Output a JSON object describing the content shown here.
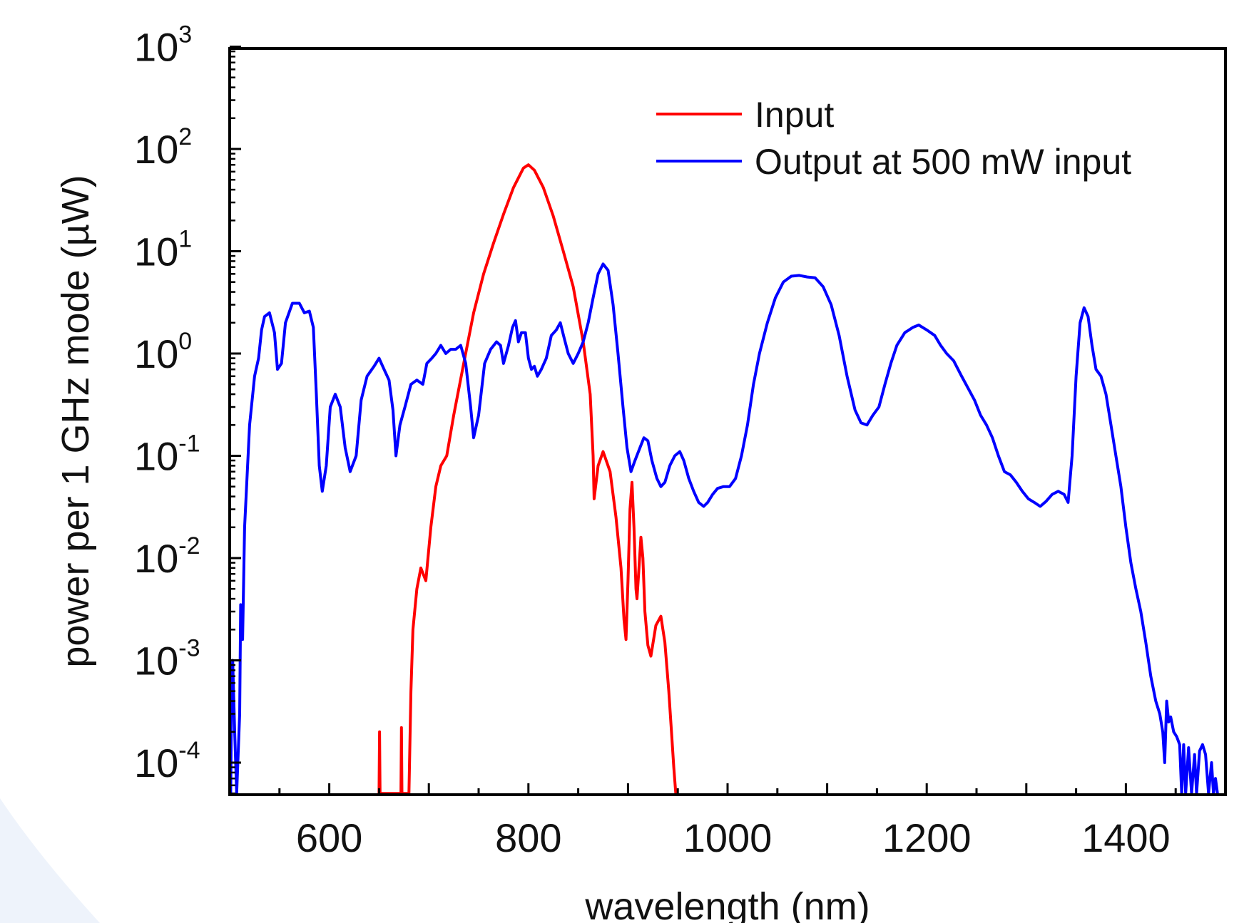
{
  "chart_data": {
    "type": "line",
    "title": "",
    "xlabel": "wavelength (nm)",
    "ylabel": "power per 1 GHz mode (µW)",
    "xlim": [
      500,
      1500
    ],
    "ylim": [
      5e-05,
      1000
    ],
    "y_scale": "log",
    "x_ticks": [
      "600",
      "800",
      "1000",
      "1200",
      "1400"
    ],
    "x_tick_values": [
      600,
      800,
      1000,
      1200,
      1400
    ],
    "y_ticks": [
      {
        "value": 0.0001,
        "base": "10",
        "exp": "-4"
      },
      {
        "value": 0.001,
        "base": "10",
        "exp": "-3"
      },
      {
        "value": 0.01,
        "base": "10",
        "exp": "-2"
      },
      {
        "value": 0.1,
        "base": "10",
        "exp": "-1"
      },
      {
        "value": 1,
        "base": "10",
        "exp": "0"
      },
      {
        "value": 10,
        "base": "10",
        "exp": "1"
      },
      {
        "value": 100,
        "base": "10",
        "exp": "2"
      },
      {
        "value": 1000,
        "base": "10",
        "exp": "3"
      }
    ],
    "legend_position": "top-right",
    "grid": false,
    "series": [
      {
        "name": "Input",
        "color": "#ff0000",
        "points": [
          [
            650,
            5e-05
          ],
          [
            650.5,
            0.0002
          ],
          [
            651,
            5e-05
          ],
          [
            672,
            5e-05
          ],
          [
            672.5,
            0.00022
          ],
          [
            673,
            5e-05
          ],
          [
            680,
            5e-05
          ],
          [
            682,
            0.0005
          ],
          [
            684,
            0.002
          ],
          [
            688,
            0.005
          ],
          [
            692,
            0.008
          ],
          [
            697,
            0.006
          ],
          [
            702,
            0.02
          ],
          [
            707,
            0.05
          ],
          [
            712,
            0.08
          ],
          [
            718,
            0.1
          ],
          [
            725,
            0.25
          ],
          [
            735,
            0.8
          ],
          [
            745,
            2.5
          ],
          [
            755,
            6
          ],
          [
            765,
            12
          ],
          [
            775,
            23
          ],
          [
            785,
            42
          ],
          [
            795,
            65
          ],
          [
            800,
            70
          ],
          [
            806,
            62
          ],
          [
            815,
            42
          ],
          [
            825,
            22
          ],
          [
            835,
            10
          ],
          [
            845,
            4.5
          ],
          [
            855,
            1.3
          ],
          [
            862,
            0.4
          ],
          [
            865,
            0.1
          ],
          [
            866,
            0.038
          ],
          [
            870,
            0.08
          ],
          [
            875,
            0.11
          ],
          [
            882,
            0.07
          ],
          [
            888,
            0.025
          ],
          [
            893,
            0.008
          ],
          [
            896,
            0.0025
          ],
          [
            898,
            0.0016
          ],
          [
            900,
            0.006
          ],
          [
            902,
            0.03
          ],
          [
            904,
            0.055
          ],
          [
            906,
            0.02
          ],
          [
            908,
            0.005
          ],
          [
            909,
            0.004
          ],
          [
            911,
            0.008
          ],
          [
            913,
            0.016
          ],
          [
            915,
            0.01
          ],
          [
            917,
            0.003
          ],
          [
            920,
            0.0014
          ],
          [
            923,
            0.0011
          ],
          [
            928,
            0.0022
          ],
          [
            933,
            0.0027
          ],
          [
            937,
            0.0015
          ],
          [
            941,
            0.0005
          ],
          [
            944,
            0.00018
          ],
          [
            946,
            9e-05
          ],
          [
            948,
            5e-05
          ],
          [
            950,
            5e-05
          ]
        ]
      },
      {
        "name": "Output at 500 mW input",
        "color": "#0000ff",
        "points": [
          [
            501,
            5e-05
          ],
          [
            502,
            0.0006
          ],
          [
            503,
            0.001
          ],
          [
            505,
            0.0002
          ],
          [
            507,
            5e-05
          ],
          [
            510,
            0.0003
          ],
          [
            511,
            0.0035
          ],
          [
            513,
            0.0016
          ],
          [
            515,
            0.02
          ],
          [
            520,
            0.2
          ],
          [
            525,
            0.6
          ],
          [
            529,
            0.9
          ],
          [
            532,
            1.7
          ],
          [
            535,
            2.3
          ],
          [
            540,
            2.5
          ],
          [
            545,
            1.6
          ],
          [
            548,
            0.7
          ],
          [
            552,
            0.8
          ],
          [
            556,
            2.0
          ],
          [
            563,
            3.1
          ],
          [
            570,
            3.1
          ],
          [
            575,
            2.5
          ],
          [
            580,
            2.6
          ],
          [
            584,
            1.8
          ],
          [
            587,
            0.4
          ],
          [
            590,
            0.08
          ],
          [
            593,
            0.045
          ],
          [
            597,
            0.08
          ],
          [
            601,
            0.3
          ],
          [
            606,
            0.4
          ],
          [
            611,
            0.3
          ],
          [
            616,
            0.12
          ],
          [
            621,
            0.07
          ],
          [
            627,
            0.1
          ],
          [
            632,
            0.35
          ],
          [
            638,
            0.6
          ],
          [
            645,
            0.75
          ],
          [
            650,
            0.9
          ],
          [
            655,
            0.7
          ],
          [
            660,
            0.55
          ],
          [
            664,
            0.28
          ],
          [
            667,
            0.1
          ],
          [
            671,
            0.2
          ],
          [
            676,
            0.3
          ],
          [
            682,
            0.5
          ],
          [
            688,
            0.55
          ],
          [
            694,
            0.5
          ],
          [
            698,
            0.8
          ],
          [
            703,
            0.9
          ],
          [
            707,
            1.0
          ],
          [
            712,
            1.2
          ],
          [
            717,
            1.0
          ],
          [
            722,
            1.1
          ],
          [
            727,
            1.1
          ],
          [
            732,
            1.2
          ],
          [
            737,
            0.8
          ],
          [
            742,
            0.3
          ],
          [
            745,
            0.15
          ],
          [
            750,
            0.25
          ],
          [
            756,
            0.8
          ],
          [
            762,
            1.1
          ],
          [
            768,
            1.3
          ],
          [
            772,
            1.2
          ],
          [
            775,
            0.8
          ],
          [
            780,
            1.2
          ],
          [
            784,
            1.8
          ],
          [
            787,
            2.1
          ],
          [
            790,
            1.3
          ],
          [
            793,
            1.6
          ],
          [
            797,
            1.6
          ],
          [
            800,
            0.9
          ],
          [
            803,
            0.7
          ],
          [
            806,
            0.75
          ],
          [
            809,
            0.6
          ],
          [
            813,
            0.7
          ],
          [
            818,
            0.9
          ],
          [
            823,
            1.5
          ],
          [
            828,
            1.7
          ],
          [
            832,
            2.0
          ],
          [
            836,
            1.4
          ],
          [
            840,
            1.0
          ],
          [
            845,
            0.8
          ],
          [
            850,
            1.0
          ],
          [
            855,
            1.3
          ],
          [
            860,
            2.0
          ],
          [
            865,
            3.5
          ],
          [
            870,
            6.0
          ],
          [
            875,
            7.5
          ],
          [
            880,
            6.5
          ],
          [
            885,
            3.0
          ],
          [
            890,
            1.0
          ],
          [
            895,
            0.3
          ],
          [
            899,
            0.12
          ],
          [
            903,
            0.07
          ],
          [
            907,
            0.09
          ],
          [
            912,
            0.12
          ],
          [
            916,
            0.15
          ],
          [
            920,
            0.14
          ],
          [
            924,
            0.09
          ],
          [
            929,
            0.06
          ],
          [
            933,
            0.05
          ],
          [
            937,
            0.055
          ],
          [
            942,
            0.08
          ],
          [
            947,
            0.1
          ],
          [
            952,
            0.11
          ],
          [
            956,
            0.09
          ],
          [
            961,
            0.06
          ],
          [
            966,
            0.045
          ],
          [
            971,
            0.035
          ],
          [
            976,
            0.032
          ],
          [
            980,
            0.035
          ],
          [
            985,
            0.042
          ],
          [
            990,
            0.048
          ],
          [
            996,
            0.05
          ],
          [
            1002,
            0.05
          ],
          [
            1008,
            0.06
          ],
          [
            1014,
            0.1
          ],
          [
            1020,
            0.2
          ],
          [
            1026,
            0.5
          ],
          [
            1032,
            1.0
          ],
          [
            1040,
            2.0
          ],
          [
            1048,
            3.5
          ],
          [
            1056,
            5.0
          ],
          [
            1064,
            5.7
          ],
          [
            1072,
            5.8
          ],
          [
            1080,
            5.6
          ],
          [
            1088,
            5.5
          ],
          [
            1096,
            4.5
          ],
          [
            1104,
            3.0
          ],
          [
            1112,
            1.5
          ],
          [
            1120,
            0.6
          ],
          [
            1128,
            0.28
          ],
          [
            1134,
            0.21
          ],
          [
            1140,
            0.2
          ],
          [
            1146,
            0.25
          ],
          [
            1152,
            0.3
          ],
          [
            1158,
            0.5
          ],
          [
            1164,
            0.8
          ],
          [
            1170,
            1.2
          ],
          [
            1178,
            1.6
          ],
          [
            1186,
            1.8
          ],
          [
            1192,
            1.9
          ],
          [
            1200,
            1.7
          ],
          [
            1208,
            1.5
          ],
          [
            1214,
            1.2
          ],
          [
            1220,
            1.0
          ],
          [
            1227,
            0.85
          ],
          [
            1235,
            0.6
          ],
          [
            1242,
            0.45
          ],
          [
            1248,
            0.35
          ],
          [
            1254,
            0.25
          ],
          [
            1260,
            0.2
          ],
          [
            1266,
            0.15
          ],
          [
            1272,
            0.1
          ],
          [
            1278,
            0.07
          ],
          [
            1284,
            0.065
          ],
          [
            1290,
            0.055
          ],
          [
            1296,
            0.045
          ],
          [
            1302,
            0.038
          ],
          [
            1308,
            0.035
          ],
          [
            1314,
            0.032
          ],
          [
            1320,
            0.036
          ],
          [
            1326,
            0.042
          ],
          [
            1332,
            0.045
          ],
          [
            1338,
            0.042
          ],
          [
            1342,
            0.035
          ],
          [
            1346,
            0.1
          ],
          [
            1350,
            0.6
          ],
          [
            1354,
            2.0
          ],
          [
            1358,
            2.8
          ],
          [
            1362,
            2.3
          ],
          [
            1366,
            1.2
          ],
          [
            1370,
            0.7
          ],
          [
            1375,
            0.6
          ],
          [
            1380,
            0.4
          ],
          [
            1385,
            0.2
          ],
          [
            1390,
            0.1
          ],
          [
            1395,
            0.05
          ],
          [
            1400,
            0.02
          ],
          [
            1405,
            0.009
          ],
          [
            1410,
            0.005
          ],
          [
            1415,
            0.003
          ],
          [
            1420,
            0.0015
          ],
          [
            1425,
            0.0007
          ],
          [
            1430,
            0.0004
          ],
          [
            1434,
            0.0003
          ],
          [
            1437,
            0.0002
          ],
          [
            1439,
            0.0001
          ],
          [
            1441,
            0.0004
          ],
          [
            1443,
            0.00025
          ],
          [
            1445,
            0.00028
          ],
          [
            1448,
            0.0002
          ],
          [
            1451,
            0.00018
          ],
          [
            1454,
            0.00015
          ],
          [
            1456,
            5e-05
          ],
          [
            1458,
            0.00015
          ],
          [
            1460,
            5e-05
          ],
          [
            1463,
            0.00014
          ],
          [
            1466,
            5e-05
          ],
          [
            1469,
            0.00012
          ],
          [
            1471,
            5e-05
          ],
          [
            1474,
            0.00013
          ],
          [
            1477,
            0.00015
          ],
          [
            1480,
            0.00012
          ],
          [
            1483,
            5e-05
          ],
          [
            1486,
            0.0001
          ],
          [
            1488,
            5e-05
          ],
          [
            1490,
            7e-05
          ],
          [
            1492,
            5e-05
          ]
        ]
      }
    ]
  }
}
